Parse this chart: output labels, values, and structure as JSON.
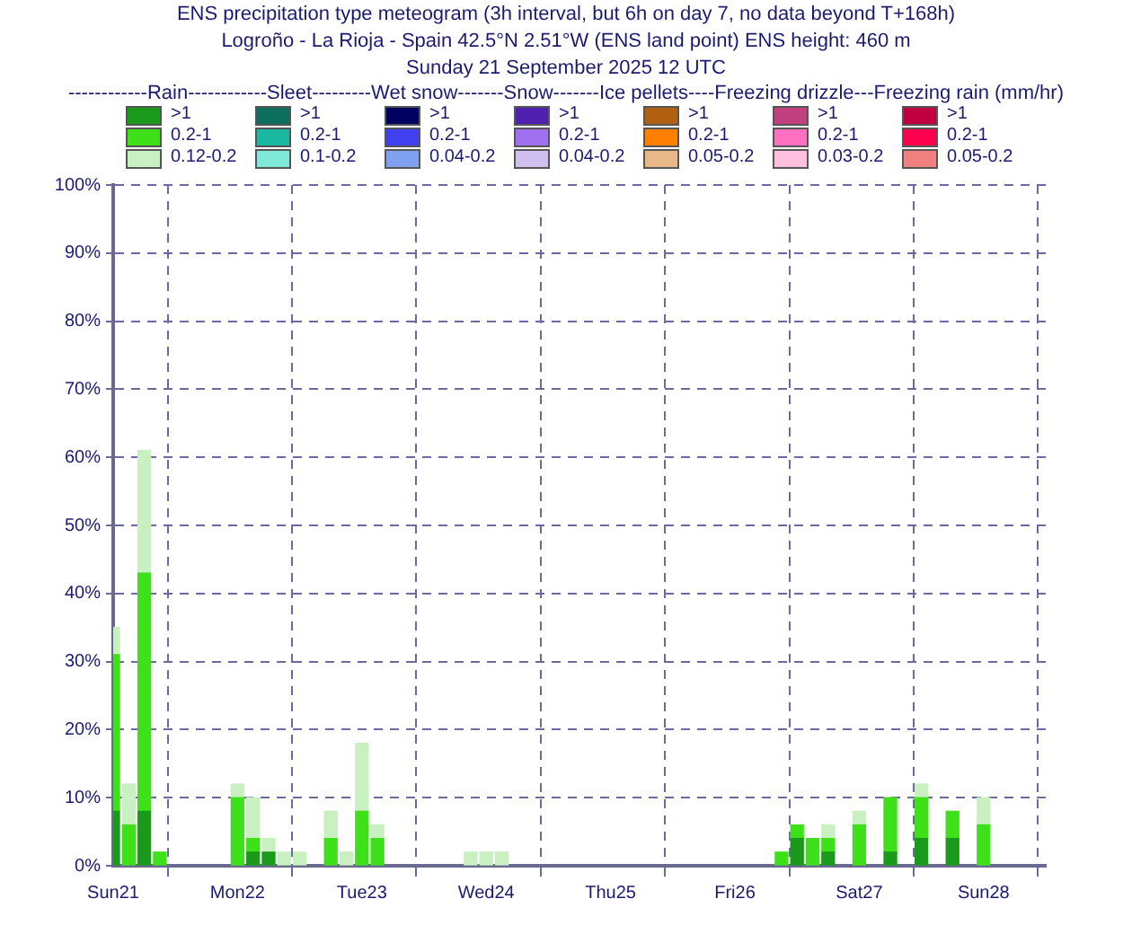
{
  "chart_data": {
    "type": "bar",
    "stacked": true,
    "title": "ENS precipitation type meteogram (3h interval, but 6h on day 7, no data beyond T+168h)",
    "subtitle": "Logroño - La Rioja - Spain 42.5°N 2.51°W (ENS land point) ENS height: 460 m\nSunday 21 September 2025 12 UTC",
    "legend_title": "------------Rain------------Sleet---------Wet snow-------Snow-------Ice pellets----Freezing drizzle---Freezing rain (mm/hr)",
    "legend": "top",
    "grid": true,
    "categories": [
      "Sun21",
      null,
      null,
      null,
      null,
      null,
      null,
      null,
      "Mon22",
      null,
      null,
      null,
      null,
      null,
      null,
      null,
      "Tue23",
      null,
      null,
      null,
      null,
      null,
      null,
      null,
      "Wed24",
      null,
      null,
      null,
      null,
      null,
      null,
      null,
      "Thu25",
      null,
      null,
      null,
      null,
      null,
      null,
      null,
      "Fri26",
      null,
      null,
      null,
      null,
      null,
      null,
      null,
      "Sat27",
      null,
      null,
      null,
      null,
      null,
      null,
      null,
      "Sun28",
      null,
      null,
      null,
      null
    ],
    "ylim": [
      0,
      100
    ],
    "yticks": [
      {
        "value": 0,
        "label": "0%"
      },
      {
        "value": 10,
        "label": "10%"
      },
      {
        "value": 20,
        "label": "20%"
      },
      {
        "value": 30,
        "label": "30%"
      },
      {
        "value": 40,
        "label": "40%"
      },
      {
        "value": 50,
        "label": "50%"
      },
      {
        "value": 60,
        "label": "60%"
      },
      {
        "value": 70,
        "label": "70%"
      },
      {
        "value": 80,
        "label": "80%"
      },
      {
        "value": 90,
        "label": "90%"
      },
      {
        "value": 100,
        "label": "100%"
      }
    ],
    "series": [
      {
        "name": ">1",
        "color": "#1a9a1a",
        "values": [
          8,
          null,
          8,
          null,
          null,
          null,
          null,
          null,
          null,
          2,
          2,
          null,
          null,
          null,
          null,
          null,
          null,
          null,
          null,
          null,
          null,
          null,
          null,
          null,
          null,
          null,
          null,
          null,
          null,
          null,
          null,
          null,
          null,
          null,
          null,
          null,
          null,
          null,
          null,
          null,
          null,
          null,
          null,
          null,
          4,
          null,
          2,
          null,
          null,
          null,
          2,
          null,
          4,
          null,
          4,
          null,
          null,
          null,
          null,
          null,
          null
        ]
      },
      {
        "name": "0.2-1",
        "color": "#3ee01a",
        "values": [
          23,
          6,
          35,
          2,
          null,
          null,
          null,
          null,
          10,
          2,
          null,
          null,
          null,
          null,
          4,
          null,
          8,
          4,
          null,
          null,
          null,
          null,
          null,
          null,
          null,
          null,
          null,
          null,
          null,
          null,
          null,
          null,
          null,
          null,
          null,
          null,
          null,
          null,
          null,
          null,
          null,
          null,
          null,
          2,
          2,
          4,
          2,
          null,
          6,
          null,
          8,
          null,
          6,
          null,
          4,
          null,
          6,
          null,
          null,
          null,
          null
        ]
      },
      {
        "name": "0.12-0.2",
        "color": "#c8f0c0",
        "values": [
          4,
          6,
          18,
          null,
          null,
          null,
          null,
          null,
          2,
          6,
          2,
          2,
          2,
          null,
          4,
          2,
          10,
          2,
          null,
          null,
          null,
          null,
          null,
          2,
          2,
          2,
          null,
          null,
          null,
          null,
          null,
          null,
          null,
          null,
          null,
          null,
          null,
          null,
          null,
          null,
          null,
          null,
          null,
          null,
          null,
          null,
          2,
          null,
          2,
          null,
          null,
          null,
          2,
          null,
          null,
          null,
          4,
          null,
          null,
          null,
          null
        ]
      },
      {
        "name": ">1",
        "color": "#0d6e5e",
        "values": [
          null,
          null,
          null,
          null,
          null,
          null,
          null,
          null,
          null,
          null,
          null,
          null,
          null,
          null,
          null,
          null,
          null,
          null,
          null,
          null,
          null,
          null,
          null,
          null,
          null,
          null,
          null,
          null,
          null,
          null,
          null,
          null,
          null,
          null,
          null,
          null,
          null,
          null,
          null,
          null,
          null,
          null,
          null,
          null,
          null,
          null,
          null,
          null,
          null,
          null,
          null,
          null,
          null,
          null,
          null,
          null,
          null,
          null,
          null,
          null,
          null
        ]
      },
      {
        "name": "0.2-1",
        "color": "#1ab8a0",
        "values": [
          null,
          null,
          null,
          null,
          null,
          null,
          null,
          null,
          null,
          null,
          null,
          null,
          null,
          null,
          null,
          null,
          null,
          null,
          null,
          null,
          null,
          null,
          null,
          null,
          null,
          null,
          null,
          null,
          null,
          null,
          null,
          null,
          null,
          null,
          null,
          null,
          null,
          null,
          null,
          null,
          null,
          null,
          null,
          null,
          null,
          null,
          null,
          null,
          null,
          null,
          null,
          null,
          null,
          null,
          null,
          null,
          null,
          null,
          null,
          null,
          null
        ]
      },
      {
        "name": "0.1-0.2",
        "color": "#80e8d8",
        "values": [
          null,
          null,
          null,
          null,
          null,
          null,
          null,
          null,
          null,
          null,
          null,
          null,
          null,
          null,
          null,
          null,
          null,
          null,
          null,
          null,
          null,
          null,
          null,
          null,
          null,
          null,
          null,
          null,
          null,
          null,
          null,
          null,
          null,
          null,
          null,
          null,
          null,
          null,
          null,
          null,
          null,
          null,
          null,
          null,
          null,
          null,
          null,
          null,
          null,
          null,
          null,
          null,
          null,
          null,
          null,
          null,
          null,
          null,
          null,
          null,
          null
        ]
      },
      {
        "name": ">1",
        "color": "#000060",
        "values": [
          null,
          null,
          null,
          null,
          null,
          null,
          null,
          null,
          null,
          null,
          null,
          null,
          null,
          null,
          null,
          null,
          null,
          null,
          null,
          null,
          null,
          null,
          null,
          null,
          null,
          null,
          null,
          null,
          null,
          null,
          null,
          null,
          null,
          null,
          null,
          null,
          null,
          null,
          null,
          null,
          null,
          null,
          null,
          null,
          null,
          null,
          null,
          null,
          null,
          null,
          null,
          null,
          null,
          null,
          null,
          null,
          null,
          null,
          null,
          null,
          null
        ]
      },
      {
        "name": "0.2-1",
        "color": "#4040f0",
        "values": [
          null,
          null,
          null,
          null,
          null,
          null,
          null,
          null,
          null,
          null,
          null,
          null,
          null,
          null,
          null,
          null,
          null,
          null,
          null,
          null,
          null,
          null,
          null,
          null,
          null,
          null,
          null,
          null,
          null,
          null,
          null,
          null,
          null,
          null,
          null,
          null,
          null,
          null,
          null,
          null,
          null,
          null,
          null,
          null,
          null,
          null,
          null,
          null,
          null,
          null,
          null,
          null,
          null,
          null,
          null,
          null,
          null,
          null,
          null,
          null,
          null
        ]
      },
      {
        "name": "0.04-0.2",
        "color": "#80a0f0",
        "values": [
          null,
          null,
          null,
          null,
          null,
          null,
          null,
          null,
          null,
          null,
          null,
          null,
          null,
          null,
          null,
          null,
          null,
          null,
          null,
          null,
          null,
          null,
          null,
          null,
          null,
          null,
          null,
          null,
          null,
          null,
          null,
          null,
          null,
          null,
          null,
          null,
          null,
          null,
          null,
          null,
          null,
          null,
          null,
          null,
          null,
          null,
          null,
          null,
          null,
          null,
          null,
          null,
          null,
          null,
          null,
          null,
          null,
          null,
          null,
          null,
          null
        ]
      },
      {
        "name": ">1",
        "color": "#5020b0",
        "values": [
          null,
          null,
          null,
          null,
          null,
          null,
          null,
          null,
          null,
          null,
          null,
          null,
          null,
          null,
          null,
          null,
          null,
          null,
          null,
          null,
          null,
          null,
          null,
          null,
          null,
          null,
          null,
          null,
          null,
          null,
          null,
          null,
          null,
          null,
          null,
          null,
          null,
          null,
          null,
          null,
          null,
          null,
          null,
          null,
          null,
          null,
          null,
          null,
          null,
          null,
          null,
          null,
          null,
          null,
          null,
          null,
          null,
          null,
          null,
          null,
          null
        ]
      },
      {
        "name": "0.2-1",
        "color": "#a070f0",
        "values": [
          null,
          null,
          null,
          null,
          null,
          null,
          null,
          null,
          null,
          null,
          null,
          null,
          null,
          null,
          null,
          null,
          null,
          null,
          null,
          null,
          null,
          null,
          null,
          null,
          null,
          null,
          null,
          null,
          null,
          null,
          null,
          null,
          null,
          null,
          null,
          null,
          null,
          null,
          null,
          null,
          null,
          null,
          null,
          null,
          null,
          null,
          null,
          null,
          null,
          null,
          null,
          null,
          null,
          null,
          null,
          null,
          null,
          null,
          null,
          null,
          null
        ]
      },
      {
        "name": "0.04-0.2",
        "color": "#d0c0f0",
        "values": [
          null,
          null,
          null,
          null,
          null,
          null,
          null,
          null,
          null,
          null,
          null,
          null,
          null,
          null,
          null,
          null,
          null,
          null,
          null,
          null,
          null,
          null,
          null,
          null,
          null,
          null,
          null,
          null,
          null,
          null,
          null,
          null,
          null,
          null,
          null,
          null,
          null,
          null,
          null,
          null,
          null,
          null,
          null,
          null,
          null,
          null,
          null,
          null,
          null,
          null,
          null,
          null,
          null,
          null,
          null,
          null,
          null,
          null,
          null,
          null,
          null
        ]
      },
      {
        "name": ">1",
        "color": "#b06010",
        "values": [
          null,
          null,
          null,
          null,
          null,
          null,
          null,
          null,
          null,
          null,
          null,
          null,
          null,
          null,
          null,
          null,
          null,
          null,
          null,
          null,
          null,
          null,
          null,
          null,
          null,
          null,
          null,
          null,
          null,
          null,
          null,
          null,
          null,
          null,
          null,
          null,
          null,
          null,
          null,
          null,
          null,
          null,
          null,
          null,
          null,
          null,
          null,
          null,
          null,
          null,
          null,
          null,
          null,
          null,
          null,
          null,
          null,
          null,
          null,
          null,
          null
        ]
      },
      {
        "name": "0.2-1",
        "color": "#ff8000",
        "values": [
          null,
          null,
          null,
          null,
          null,
          null,
          null,
          null,
          null,
          null,
          null,
          null,
          null,
          null,
          null,
          null,
          null,
          null,
          null,
          null,
          null,
          null,
          null,
          null,
          null,
          null,
          null,
          null,
          null,
          null,
          null,
          null,
          null,
          null,
          null,
          null,
          null,
          null,
          null,
          null,
          null,
          null,
          null,
          null,
          null,
          null,
          null,
          null,
          null,
          null,
          null,
          null,
          null,
          null,
          null,
          null,
          null,
          null,
          null,
          null,
          null
        ]
      },
      {
        "name": "0.05-0.2",
        "color": "#e8b888",
        "values": [
          null,
          null,
          null,
          null,
          null,
          null,
          null,
          null,
          null,
          null,
          null,
          null,
          null,
          null,
          null,
          null,
          null,
          null,
          null,
          null,
          null,
          null,
          null,
          null,
          null,
          null,
          null,
          null,
          null,
          null,
          null,
          null,
          null,
          null,
          null,
          null,
          null,
          null,
          null,
          null,
          null,
          null,
          null,
          null,
          null,
          null,
          null,
          null,
          null,
          null,
          null,
          null,
          null,
          null,
          null,
          null,
          null,
          null,
          null,
          null,
          null
        ]
      },
      {
        "name": ">1",
        "color": "#c04080",
        "values": [
          null,
          null,
          null,
          null,
          null,
          null,
          null,
          null,
          null,
          null,
          null,
          null,
          null,
          null,
          null,
          null,
          null,
          null,
          null,
          null,
          null,
          null,
          null,
          null,
          null,
          null,
          null,
          null,
          null,
          null,
          null,
          null,
          null,
          null,
          null,
          null,
          null,
          null,
          null,
          null,
          null,
          null,
          null,
          null,
          null,
          null,
          null,
          null,
          null,
          null,
          null,
          null,
          null,
          null,
          null,
          null,
          null,
          null,
          null,
          null,
          null
        ]
      },
      {
        "name": "0.2-1",
        "color": "#ff70c0",
        "values": [
          null,
          null,
          null,
          null,
          null,
          null,
          null,
          null,
          null,
          null,
          null,
          null,
          null,
          null,
          null,
          null,
          null,
          null,
          null,
          null,
          null,
          null,
          null,
          null,
          null,
          null,
          null,
          null,
          null,
          null,
          null,
          null,
          null,
          null,
          null,
          null,
          null,
          null,
          null,
          null,
          null,
          null,
          null,
          null,
          null,
          null,
          null,
          null,
          null,
          null,
          null,
          null,
          null,
          null,
          null,
          null,
          null,
          null,
          null,
          null,
          null
        ]
      },
      {
        "name": "0.03-0.2",
        "color": "#ffc0e0",
        "values": [
          null,
          null,
          null,
          null,
          null,
          null,
          null,
          null,
          null,
          null,
          null,
          null,
          null,
          null,
          null,
          null,
          null,
          null,
          null,
          null,
          null,
          null,
          null,
          null,
          null,
          null,
          null,
          null,
          null,
          null,
          null,
          null,
          null,
          null,
          null,
          null,
          null,
          null,
          null,
          null,
          null,
          null,
          null,
          null,
          null,
          null,
          null,
          null,
          null,
          null,
          null,
          null,
          null,
          null,
          null,
          null,
          null,
          null,
          null,
          null,
          null
        ]
      },
      {
        "name": ">1",
        "color": "#c00040",
        "values": [
          null,
          null,
          null,
          null,
          null,
          null,
          null,
          null,
          null,
          null,
          null,
          null,
          null,
          null,
          null,
          null,
          null,
          null,
          null,
          null,
          null,
          null,
          null,
          null,
          null,
          null,
          null,
          null,
          null,
          null,
          null,
          null,
          null,
          null,
          null,
          null,
          null,
          null,
          null,
          null,
          null,
          null,
          null,
          null,
          null,
          null,
          null,
          null,
          null,
          null,
          null,
          null,
          null,
          null,
          null,
          null,
          null,
          null,
          null,
          null,
          null
        ]
      },
      {
        "name": "0.2-1",
        "color": "#ff0050",
        "values": [
          null,
          null,
          null,
          null,
          null,
          null,
          null,
          null,
          null,
          null,
          null,
          null,
          null,
          null,
          null,
          null,
          null,
          null,
          null,
          null,
          null,
          null,
          null,
          null,
          null,
          null,
          null,
          null,
          null,
          null,
          null,
          null,
          null,
          null,
          null,
          null,
          null,
          null,
          null,
          null,
          null,
          null,
          null,
          null,
          null,
          null,
          null,
          null,
          null,
          null,
          null,
          null,
          null,
          null,
          null,
          null,
          null,
          null,
          null,
          null,
          null
        ]
      },
      {
        "name": "0.05-0.2",
        "color": "#f08080",
        "values": [
          null,
          null,
          null,
          null,
          null,
          null,
          null,
          null,
          null,
          null,
          null,
          null,
          null,
          null,
          null,
          null,
          null,
          null,
          null,
          null,
          null,
          null,
          null,
          null,
          null,
          null,
          null,
          null,
          null,
          null,
          null,
          null,
          null,
          null,
          null,
          null,
          null,
          null,
          null,
          null,
          null,
          null,
          null,
          null,
          null,
          null,
          null,
          null,
          null,
          null,
          null,
          null,
          null,
          null,
          null,
          null,
          null,
          null,
          null,
          null,
          null
        ]
      }
    ]
  }
}
